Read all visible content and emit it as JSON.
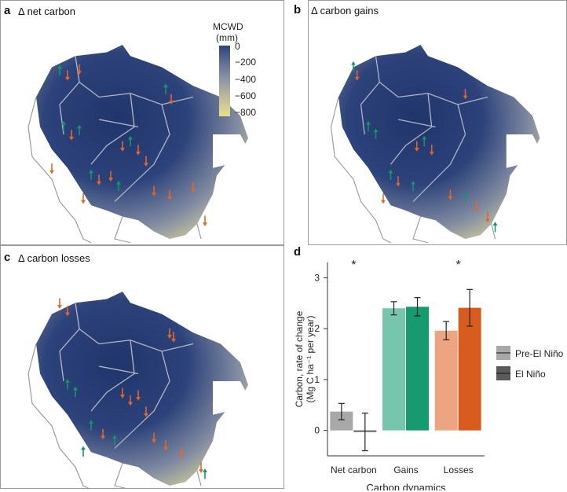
{
  "panels": {
    "a": {
      "label": "a",
      "title": "Δ net carbon"
    },
    "b": {
      "label": "b",
      "title": "Δ carbon gains"
    },
    "c": {
      "label": "c",
      "title": "Δ carbon losses"
    },
    "d": {
      "label": "d"
    }
  },
  "colorbar": {
    "title": "MCWD",
    "unit": "(mm)",
    "ticks": [
      "0",
      "−200",
      "−400",
      "−600",
      "−800"
    ],
    "colors": [
      "#2f4478",
      "#7e8aa6",
      "#b9b59e",
      "#e6e28a"
    ]
  },
  "marker_colors": {
    "increase": "#17946e",
    "decrease": "#e0672a",
    "map_wet": "#20356b",
    "map_dry": "#d9d59a"
  },
  "chart_data": {
    "type": "bar",
    "categories": [
      "Net carbon",
      "Gains",
      "Losses"
    ],
    "series": [
      {
        "name": "Pre-El Niño",
        "values": [
          0.37,
          2.4,
          1.96
        ],
        "errors": [
          0.16,
          0.13,
          0.18
        ]
      },
      {
        "name": "El Niño",
        "values": [
          -0.03,
          2.43,
          2.41
        ],
        "errors": [
          0.37,
          0.18,
          0.36
        ]
      }
    ],
    "bar_colors": {
      "Net carbon": [
        "#a8a8a8",
        "#5a5a5a"
      ],
      "Gains": [
        "#78c5ad",
        "#179a70"
      ],
      "Losses": [
        "#eca580",
        "#d95c1f"
      ]
    },
    "significance": [
      "*",
      "",
      "*"
    ],
    "xlabel": "Carbon dynamics",
    "ylabel_line1": "Carbon, rate of change",
    "ylabel_line2": "(Mg C ha⁻¹ per year)",
    "yticks": [
      0,
      1,
      2,
      3
    ],
    "ylim": [
      -0.5,
      3.3
    ],
    "legend": {
      "items": [
        "Pre-El Niño",
        "El Niño"
      ],
      "colors": [
        "#a8a8a8",
        "#5a5a5a"
      ],
      "position": "right"
    }
  }
}
